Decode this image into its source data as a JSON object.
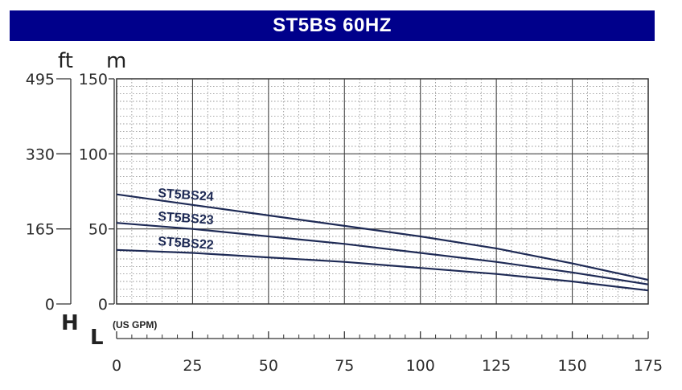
{
  "title": "ST5BS 60HZ",
  "colors": {
    "title_bg": "#00008b",
    "title_text": "#ffffff",
    "curve": "#1e2a55",
    "grid": "#777777"
  },
  "chart_data": {
    "type": "line",
    "title": "ST5BS 60HZ",
    "x_axis_letter": "L",
    "x_unit": "(US GPM)",
    "y_axis_letter": "H",
    "y_units": {
      "left": "ft",
      "right": "m"
    },
    "xlim": [
      0,
      175
    ],
    "ylim": [
      0,
      150
    ],
    "x_ticks": [
      "0",
      "25",
      "50",
      "75",
      "100",
      "125",
      "150",
      "175"
    ],
    "y_ticks_m": [
      "0",
      "50",
      "100",
      "150"
    ],
    "y_ticks_ft": [
      "0",
      "165",
      "330",
      "495"
    ],
    "grid": true,
    "series": [
      {
        "name": "ST5BS24",
        "x": [
          0,
          25,
          50,
          75,
          100,
          125,
          150,
          175
        ],
        "y": [
          73,
          66,
          59,
          52,
          45,
          37,
          27,
          16
        ]
      },
      {
        "name": "ST5BS23",
        "x": [
          0,
          25,
          50,
          75,
          100,
          125,
          150,
          175
        ],
        "y": [
          54,
          50,
          45,
          40,
          34,
          28,
          21,
          13
        ]
      },
      {
        "name": "ST5BS22",
        "x": [
          0,
          25,
          50,
          75,
          100,
          125,
          150,
          175
        ],
        "y": [
          36,
          34,
          31,
          28,
          24,
          20,
          15,
          9
        ]
      }
    ]
  }
}
